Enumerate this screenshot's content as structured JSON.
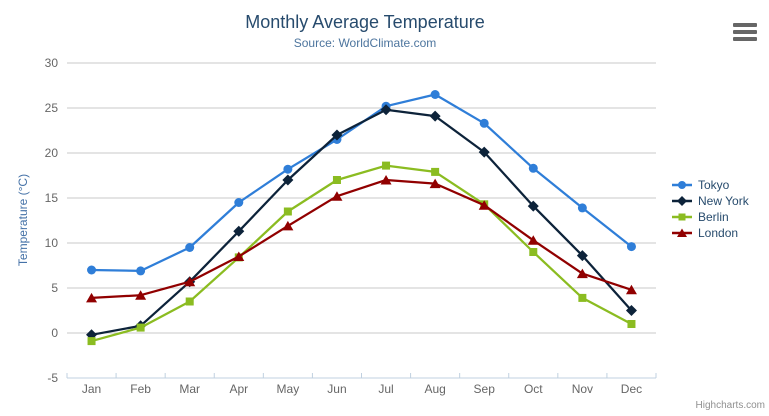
{
  "chart_data": {
    "type": "line",
    "title": "Monthly Average Temperature",
    "subtitle": "Source: WorldClimate.com",
    "xlabel": "",
    "ylabel": "Temperature (°C)",
    "ylim": [
      -5,
      30
    ],
    "ytick_step": 5,
    "grid": true,
    "legend_position": "right",
    "categories": [
      "Jan",
      "Feb",
      "Mar",
      "Apr",
      "May",
      "Jun",
      "Jul",
      "Aug",
      "Sep",
      "Oct",
      "Nov",
      "Dec"
    ],
    "series": [
      {
        "name": "Tokyo",
        "color": "#2f7ed8",
        "marker": "circle",
        "values": [
          7.0,
          6.9,
          9.5,
          14.5,
          18.2,
          21.5,
          25.2,
          26.5,
          23.3,
          18.3,
          13.9,
          9.6
        ]
      },
      {
        "name": "New York",
        "color": "#0d233a",
        "marker": "diamond",
        "values": [
          -0.2,
          0.8,
          5.7,
          11.3,
          17.0,
          22.0,
          24.8,
          24.1,
          20.1,
          14.1,
          8.6,
          2.5
        ]
      },
      {
        "name": "Berlin",
        "color": "#8bbc21",
        "marker": "square",
        "values": [
          -0.9,
          0.6,
          3.5,
          8.4,
          13.5,
          17.0,
          18.6,
          17.9,
          14.3,
          9.0,
          3.9,
          1.0
        ]
      },
      {
        "name": "London",
        "color": "#910000",
        "marker": "triangle",
        "values": [
          3.9,
          4.2,
          5.7,
          8.5,
          11.9,
          15.2,
          17.0,
          16.6,
          14.2,
          10.3,
          6.6,
          4.8
        ]
      }
    ]
  },
  "credits": "Highcharts.com",
  "icons": {
    "export_menu": "hamburger-menu-icon"
  },
  "colors": {
    "title": "#274b6d",
    "subtitle": "#4d759e",
    "axis_labels": "#666666",
    "axis_title": "#4572a7",
    "gridline": "#c9c9c9",
    "axis_line": "#c0d0e0",
    "legend_text": "#274b6d",
    "credits": "#909090",
    "export_icon": "#666666"
  }
}
